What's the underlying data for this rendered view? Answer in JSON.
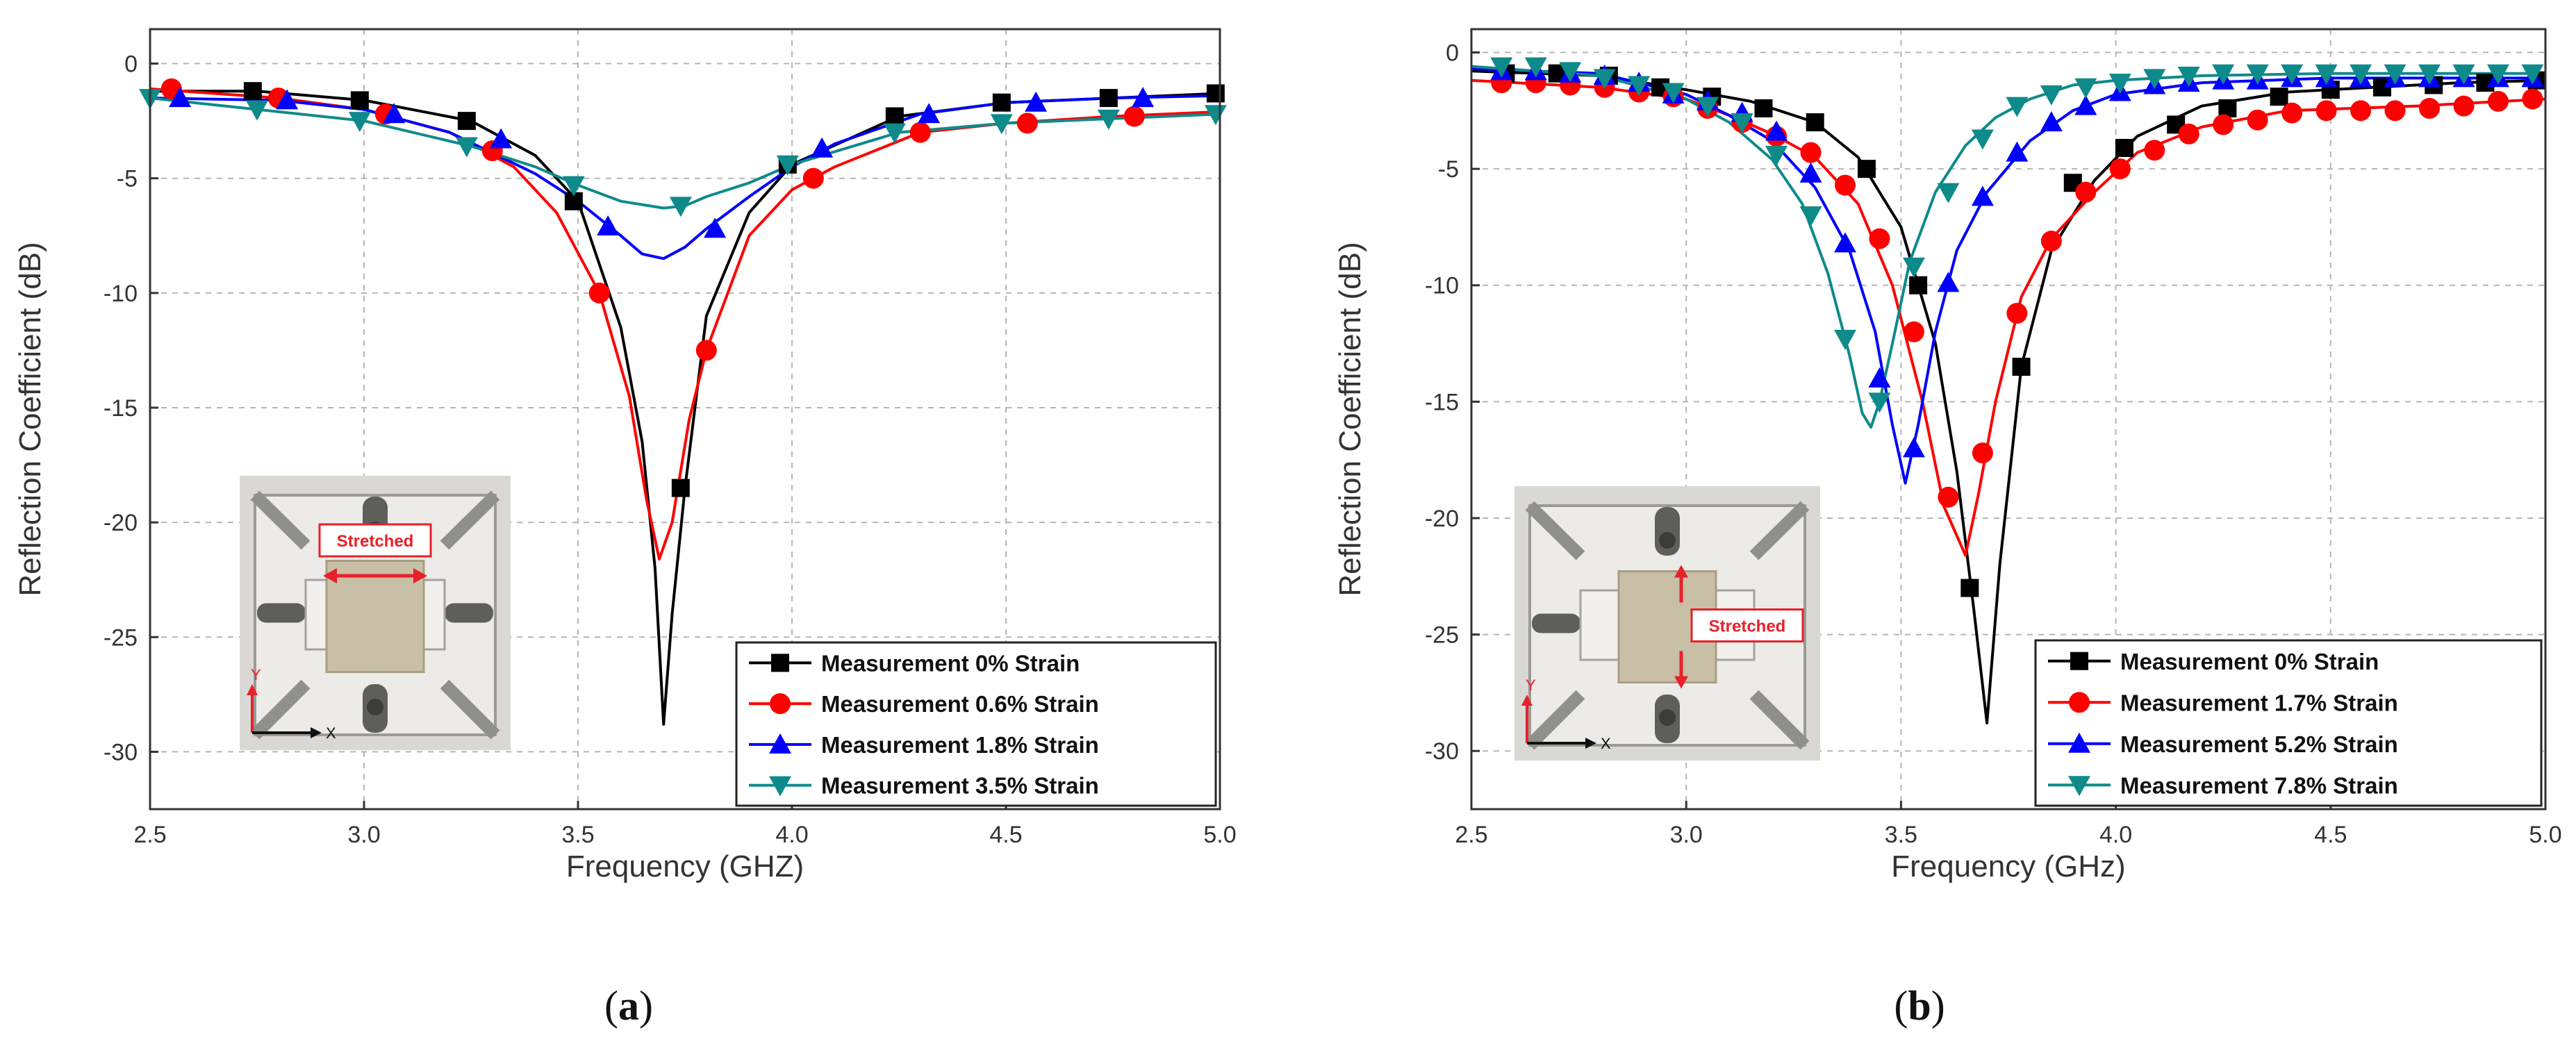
{
  "panels": [
    {
      "panel": "a",
      "caption": {
        "open": "(",
        "letter": "a",
        "close": ")"
      },
      "inset": {
        "label": "Stretched",
        "axis_x": "X",
        "axis_y": "Y",
        "arrow": "horizontal"
      }
    },
    {
      "panel": "b",
      "caption": {
        "open": "(",
        "letter": "b",
        "close": ")"
      },
      "inset": {
        "label": "Stretched",
        "axis_x": "X",
        "axis_y": "Y",
        "arrow": "vertical"
      }
    }
  ],
  "chart_data": [
    {
      "type": "line",
      "panel": "a",
      "xlabel": "Frequency (GHZ)",
      "ylabel": "Reflection Coefficient (dB)",
      "xlim": [
        2.5,
        5.0
      ],
      "ylim": [
        -32.5,
        1.5
      ],
      "xticks": [
        2.5,
        3.0,
        3.5,
        4.0,
        4.5,
        5.0
      ],
      "xtick_labels": [
        "2.5",
        "3.0",
        "3.5",
        "4.0",
        "4.5",
        "5.0"
      ],
      "yticks": [
        0,
        -5,
        -10,
        -15,
        -20,
        -25,
        -30
      ],
      "ytick_labels": [
        "0",
        "-5",
        "-10",
        "-15",
        "-20",
        "-25",
        "-30"
      ],
      "grid": true,
      "legend_position": "bottom-right",
      "series": [
        {
          "name": "Measurement 0% Strain",
          "color": "#000000",
          "marker": "square",
          "x": [
            2.5,
            2.75,
            3.0,
            3.25,
            3.4,
            3.5,
            3.6,
            3.65,
            3.68,
            3.7,
            3.72,
            3.75,
            3.8,
            3.9,
            4.0,
            4.25,
            4.5,
            4.75,
            5.0
          ],
          "y": [
            -1.2,
            -1.2,
            -1.6,
            -2.5,
            -4.0,
            -6.0,
            -11.5,
            -16.5,
            -22.0,
            -28.8,
            -24.0,
            -18.5,
            -11.0,
            -6.5,
            -4.4,
            -2.3,
            -1.7,
            -1.5,
            -1.3
          ],
          "marker_x": [
            2.74,
            2.99,
            3.24,
            3.49,
            3.74,
            3.99,
            4.24,
            4.49,
            4.74,
            4.99
          ],
          "marker_y": [
            -1.2,
            -1.6,
            -2.5,
            -6.0,
            -18.5,
            -4.4,
            -2.3,
            -1.7,
            -1.5,
            -1.3
          ]
        },
        {
          "name": "Measurement 0.6% Strain",
          "color": "#ff0000",
          "marker": "circle",
          "x": [
            2.5,
            2.8,
            3.0,
            3.2,
            3.35,
            3.45,
            3.55,
            3.62,
            3.66,
            3.69,
            3.72,
            3.76,
            3.8,
            3.9,
            4.0,
            4.1,
            4.3,
            4.5,
            4.75,
            5.0
          ],
          "y": [
            -1.1,
            -1.5,
            -2.0,
            -3.0,
            -4.5,
            -6.5,
            -10.0,
            -14.5,
            -19.0,
            -21.6,
            -20.0,
            -15.5,
            -12.5,
            -7.5,
            -5.5,
            -4.5,
            -3.0,
            -2.6,
            -2.3,
            -2.1
          ],
          "marker_x": [
            2.55,
            2.8,
            3.05,
            3.3,
            3.55,
            3.8,
            4.05,
            4.3,
            4.55,
            4.8
          ],
          "marker_y": [
            -1.1,
            -1.5,
            -2.2,
            -3.8,
            -10.0,
            -12.5,
            -5.0,
            -3.0,
            -2.6,
            -2.3
          ]
        },
        {
          "name": "Measurement 1.8% Strain",
          "color": "#0000ff",
          "marker": "triangle-up",
          "x": [
            2.5,
            2.8,
            3.0,
            3.2,
            3.4,
            3.5,
            3.6,
            3.65,
            3.7,
            3.75,
            3.8,
            3.9,
            4.0,
            4.1,
            4.3,
            4.5,
            4.75,
            5.0
          ],
          "y": [
            -1.5,
            -1.6,
            -2.0,
            -3.0,
            -4.8,
            -6.0,
            -7.5,
            -8.3,
            -8.5,
            -8.0,
            -7.2,
            -5.8,
            -4.5,
            -3.5,
            -2.2,
            -1.7,
            -1.5,
            -1.4
          ],
          "marker_x": [
            2.57,
            2.82,
            3.07,
            3.32,
            3.57,
            3.82,
            4.07,
            4.32,
            4.57,
            4.82
          ],
          "marker_y": [
            -1.5,
            -1.6,
            -2.2,
            -3.3,
            -7.1,
            -7.2,
            -3.7,
            -2.2,
            -1.7,
            -1.5
          ]
        },
        {
          "name": "Measurement 3.5% Strain",
          "color": "#0f8a8a",
          "marker": "triangle-down",
          "x": [
            2.5,
            2.75,
            3.0,
            3.25,
            3.4,
            3.5,
            3.6,
            3.7,
            3.75,
            3.8,
            3.9,
            4.0,
            4.25,
            4.5,
            4.75,
            5.0
          ],
          "y": [
            -1.5,
            -2.0,
            -2.5,
            -3.6,
            -4.5,
            -5.3,
            -6.0,
            -6.3,
            -6.2,
            -5.8,
            -5.2,
            -4.4,
            -3.0,
            -2.6,
            -2.4,
            -2.2
          ],
          "marker_x": [
            2.5,
            2.75,
            2.99,
            3.24,
            3.49,
            3.74,
            3.99,
            4.24,
            4.49,
            4.74,
            4.99
          ],
          "marker_y": [
            -1.5,
            -2.0,
            -2.5,
            -3.6,
            -5.3,
            -6.2,
            -4.4,
            -3.0,
            -2.6,
            -2.4,
            -2.2
          ]
        }
      ]
    },
    {
      "type": "line",
      "panel": "b",
      "xlabel": "Frequency (GHz)",
      "ylabel": "Reflection Coefficient (dB)",
      "xlim": [
        2.5,
        5.0
      ],
      "ylim": [
        -32.5,
        1.0
      ],
      "xticks": [
        2.5,
        3.0,
        3.5,
        4.0,
        4.5,
        5.0
      ],
      "xtick_labels": [
        "2.5",
        "3.0",
        "3.5",
        "4.0",
        "4.5",
        "5.0"
      ],
      "yticks": [
        0,
        -5,
        -10,
        -15,
        -20,
        -25,
        -30
      ],
      "ytick_labels": [
        "0",
        "-5",
        "-10",
        "-15",
        "-20",
        "-25",
        "-30"
      ],
      "grid": true,
      "legend_position": "bottom-right",
      "series": [
        {
          "name": "Measurement 0% Strain",
          "color": "#000000",
          "marker": "square",
          "x": [
            2.5,
            2.8,
            3.0,
            3.15,
            3.3,
            3.4,
            3.5,
            3.58,
            3.63,
            3.67,
            3.7,
            3.73,
            3.78,
            3.85,
            3.95,
            4.05,
            4.2,
            4.4,
            4.6,
            4.8,
            5.0
          ],
          "y": [
            -0.8,
            -1.0,
            -1.6,
            -2.1,
            -3.0,
            -4.5,
            -7.5,
            -12.5,
            -18.0,
            -24.0,
            -28.8,
            -22.0,
            -13.5,
            -8.5,
            -5.5,
            -3.6,
            -2.3,
            -1.7,
            -1.5,
            -1.3,
            -1.2
          ],
          "marker_x": [
            2.58,
            2.7,
            2.82,
            2.94,
            3.06,
            3.18,
            3.3,
            3.42,
            3.54,
            3.66,
            3.78,
            3.9,
            4.02,
            4.14,
            4.26,
            4.38,
            4.5,
            4.62,
            4.74,
            4.86,
            4.98
          ],
          "marker_y": [
            -0.9,
            -0.9,
            -1.0,
            -1.5,
            -1.9,
            -2.4,
            -3.0,
            -5.0,
            -10.0,
            -23.0,
            -13.5,
            -5.6,
            -4.1,
            -3.1,
            -2.4,
            -1.9,
            -1.6,
            -1.5,
            -1.4,
            -1.3,
            -1.2
          ]
        },
        {
          "name": "Measurement 1.7% Strain",
          "color": "#ff0000",
          "marker": "circle",
          "x": [
            2.5,
            2.8,
            3.0,
            3.1,
            3.2,
            3.3,
            3.4,
            3.48,
            3.55,
            3.6,
            3.65,
            3.68,
            3.72,
            3.78,
            3.85,
            3.95,
            4.05,
            4.2,
            4.4,
            4.7,
            5.0
          ],
          "y": [
            -1.2,
            -1.5,
            -2.0,
            -2.7,
            -3.5,
            -4.5,
            -6.5,
            -10.0,
            -15.0,
            -19.5,
            -21.6,
            -19.0,
            -15.0,
            -10.5,
            -8.0,
            -6.0,
            -4.3,
            -3.2,
            -2.5,
            -2.3,
            -2.0
          ],
          "marker_x": [
            2.57,
            2.65,
            2.73,
            2.81,
            2.89,
            2.97,
            3.05,
            3.13,
            3.21,
            3.29,
            3.37,
            3.45,
            3.53,
            3.61,
            3.69,
            3.77,
            3.85,
            3.93,
            4.01,
            4.09,
            4.17,
            4.25,
            4.33,
            4.41,
            4.49,
            4.57,
            4.65,
            4.73,
            4.81,
            4.89,
            4.97
          ],
          "marker_y": [
            -1.3,
            -1.3,
            -1.4,
            -1.5,
            -1.7,
            -1.9,
            -2.4,
            -3.0,
            -3.6,
            -4.3,
            -5.7,
            -8.0,
            -12.0,
            -19.1,
            -17.2,
            -11.2,
            -8.1,
            -6.0,
            -5.0,
            -4.2,
            -3.5,
            -3.1,
            -2.9,
            -2.6,
            -2.5,
            -2.5,
            -2.5,
            -2.4,
            -2.3,
            -2.1,
            -2.0
          ]
        },
        {
          "name": "Measurement 5.2% Strain",
          "color": "#0000ff",
          "marker": "triangle-up",
          "x": [
            2.5,
            2.8,
            3.0,
            3.1,
            3.2,
            3.3,
            3.38,
            3.44,
            3.48,
            3.51,
            3.54,
            3.58,
            3.63,
            3.7,
            3.8,
            3.9,
            4.0,
            4.2,
            4.5,
            5.0
          ],
          "y": [
            -0.7,
            -0.9,
            -1.8,
            -2.7,
            -3.8,
            -5.8,
            -8.5,
            -12.0,
            -16.0,
            -18.5,
            -16.0,
            -12.0,
            -8.5,
            -6.0,
            -3.8,
            -2.5,
            -1.8,
            -1.3,
            -1.1,
            -1.1
          ],
          "marker_x": [
            2.57,
            2.65,
            2.73,
            2.81,
            2.89,
            2.97,
            3.05,
            3.13,
            3.21,
            3.29,
            3.37,
            3.45,
            3.53,
            3.61,
            3.69,
            3.77,
            3.85,
            3.93,
            4.01,
            4.09,
            4.17,
            4.25,
            4.33,
            4.41,
            4.49,
            4.57,
            4.65,
            4.73,
            4.81,
            4.89,
            4.97
          ],
          "marker_y": [
            -0.8,
            -0.8,
            -0.9,
            -1.0,
            -1.3,
            -1.8,
            -2.1,
            -2.6,
            -3.4,
            -5.2,
            -8.2,
            -14.0,
            -17.0,
            -9.9,
            -6.2,
            -4.3,
            -3.0,
            -2.3,
            -1.7,
            -1.4,
            -1.3,
            -1.2,
            -1.2,
            -1.1,
            -1.1,
            -1.1,
            -1.1,
            -1.1,
            -1.1,
            -1.1,
            -1.1
          ]
        },
        {
          "name": "Measurement 7.8% Strain",
          "color": "#0f8a8a",
          "marker": "triangle-down",
          "x": [
            2.5,
            2.8,
            3.0,
            3.1,
            3.2,
            3.27,
            3.33,
            3.38,
            3.41,
            3.43,
            3.45,
            3.48,
            3.52,
            3.58,
            3.65,
            3.72,
            3.8,
            3.9,
            4.0,
            4.2,
            4.5,
            5.0
          ],
          "y": [
            -0.6,
            -1.0,
            -2.0,
            -3.0,
            -4.6,
            -6.5,
            -9.5,
            -13.0,
            -15.5,
            -16.1,
            -15.0,
            -12.5,
            -9.0,
            -6.0,
            -4.0,
            -2.8,
            -2.0,
            -1.4,
            -1.2,
            -1.0,
            -0.9,
            -0.9
          ],
          "marker_x": [
            2.57,
            2.65,
            2.73,
            2.81,
            2.89,
            2.97,
            3.05,
            3.13,
            3.21,
            3.29,
            3.37,
            3.45,
            3.53,
            3.61,
            3.69,
            3.77,
            3.85,
            3.93,
            4.01,
            4.09,
            4.17,
            4.25,
            4.33,
            4.41,
            4.49,
            4.57,
            4.65,
            4.73,
            4.81,
            4.89,
            4.97
          ],
          "marker_y": [
            -0.6,
            -0.6,
            -0.8,
            -1.1,
            -1.4,
            -1.7,
            -2.3,
            -3.0,
            -4.4,
            -7.0,
            -12.3,
            -15.0,
            -9.2,
            -6.0,
            -3.7,
            -2.3,
            -1.8,
            -1.5,
            -1.3,
            -1.1,
            -1.0,
            -0.9,
            -0.9,
            -0.9,
            -0.9,
            -0.9,
            -0.9,
            -0.9,
            -0.9,
            -0.9,
            -0.9
          ]
        }
      ]
    }
  ]
}
